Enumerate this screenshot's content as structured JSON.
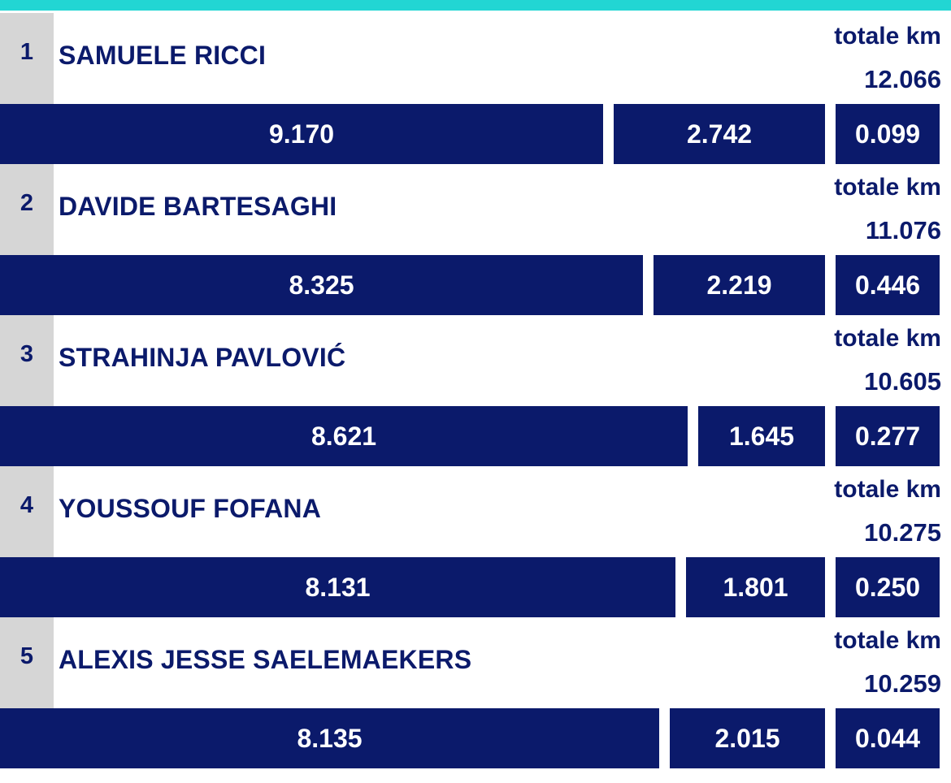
{
  "colors": {
    "accent_stripe": "#22d6d3",
    "bar": "#0b1a6b",
    "text": "#0b1a6b",
    "rank_background": "#d6d6d6"
  },
  "chart_data": {
    "type": "bar",
    "orientation": "horizontal-stacked",
    "categories": [
      "SAMUELE RICCI",
      "DAVIDE BARTESAGHI",
      "STRAHINJA PAVLOVIĆ",
      "YOUSSOUF FOFANA",
      "ALEXIS JESSE SAELEMAEKERS"
    ],
    "ranks": [
      "1",
      "2",
      "3",
      "4",
      "5"
    ],
    "total_label": "totale km",
    "totals": [
      "12.066",
      "11.076",
      "10.605",
      "10.275",
      "10.259"
    ],
    "series": [
      {
        "values": [
          9.17,
          8.325,
          8.621,
          8.131,
          8.135
        ],
        "labels": [
          "9.170",
          "8.325",
          "8.621",
          "8.131",
          "8.135"
        ]
      },
      {
        "values": [
          2.742,
          2.219,
          1.645,
          1.801,
          2.015
        ],
        "labels": [
          "2.742",
          "2.219",
          "1.645",
          "1.801",
          "2.015"
        ]
      },
      {
        "values": [
          0.099,
          0.446,
          0.277,
          0.25,
          0.044
        ],
        "labels": [
          "0.099",
          "0.446",
          "0.277",
          "0.250",
          "0.044"
        ]
      }
    ]
  }
}
